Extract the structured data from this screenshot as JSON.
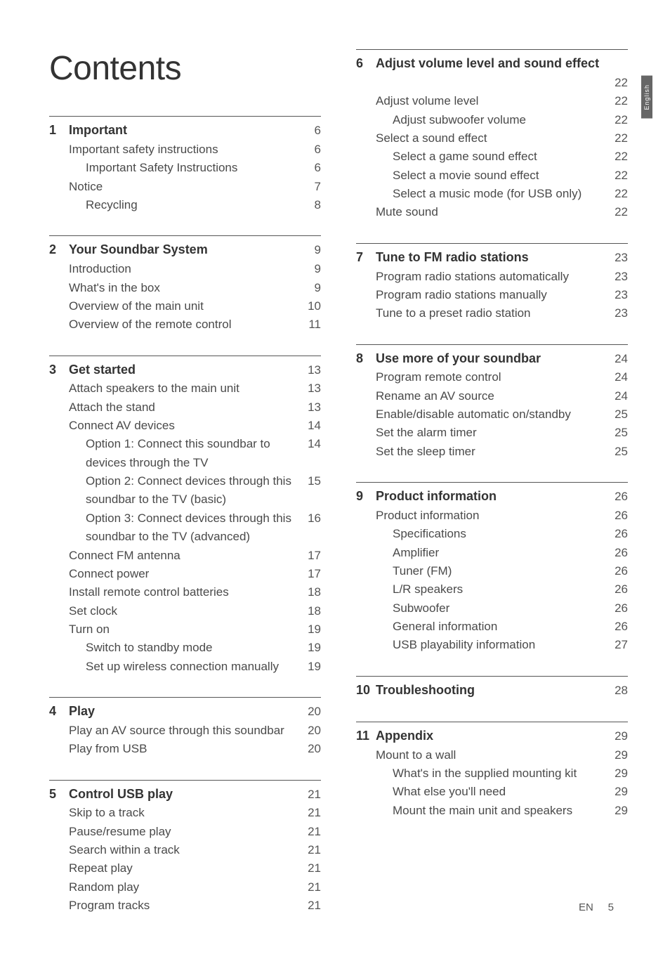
{
  "title": "Contents",
  "lang_tab": "English",
  "footer": {
    "lang": "EN",
    "page": "5"
  },
  "left": [
    {
      "num": "1",
      "head": {
        "label": "Important",
        "page": "6"
      },
      "rows": [
        {
          "label": "Important safety instructions",
          "page": "6"
        },
        {
          "label": "Important Safety Instructions",
          "page": "6",
          "sub": true
        },
        {
          "label": "Notice",
          "page": "7"
        },
        {
          "label": "Recycling",
          "page": "8",
          "sub": true
        }
      ]
    },
    {
      "num": "2",
      "head": {
        "label": "Your Soundbar System",
        "page": "9"
      },
      "rows": [
        {
          "label": "Introduction",
          "page": "9"
        },
        {
          "label": "What's in the box",
          "page": "9"
        },
        {
          "label": "Overview of the main unit",
          "page": "10"
        },
        {
          "label": "Overview of the remote control",
          "page": "11"
        }
      ]
    },
    {
      "num": "3",
      "head": {
        "label": "Get started",
        "page": "13"
      },
      "rows": [
        {
          "label": "Attach speakers to the main unit",
          "page": "13"
        },
        {
          "label": "Attach the stand",
          "page": "13"
        },
        {
          "label": "Connect AV devices",
          "page": "14"
        },
        {
          "label": "Option 1: Connect this soundbar to devices through the TV",
          "page": "14",
          "sub": true
        },
        {
          "label": "Option 2: Connect devices through this soundbar to the TV (basic)",
          "page": "15",
          "sub": true
        },
        {
          "label": "Option 3: Connect devices through this soundbar to the TV (advanced)",
          "page": "16",
          "sub": true
        },
        {
          "label": "Connect FM antenna",
          "page": "17"
        },
        {
          "label": "Connect power",
          "page": "17"
        },
        {
          "label": "Install remote control batteries",
          "page": "18"
        },
        {
          "label": "Set clock",
          "page": "18"
        },
        {
          "label": "Turn on",
          "page": "19"
        },
        {
          "label": "Switch to standby mode",
          "page": "19",
          "sub": true
        },
        {
          "label": "Set up wireless connection manually",
          "page": "19",
          "sub": true
        }
      ]
    },
    {
      "num": "4",
      "head": {
        "label": "Play",
        "page": "20"
      },
      "rows": [
        {
          "label": "Play an AV source through this soundbar",
          "page": "20"
        },
        {
          "label": "Play from USB",
          "page": "20"
        }
      ]
    },
    {
      "num": "5",
      "head": {
        "label": "Control USB play",
        "page": "21"
      },
      "rows": [
        {
          "label": "Skip to a track",
          "page": "21"
        },
        {
          "label": "Pause/resume play",
          "page": "21"
        },
        {
          "label": "Search within a track",
          "page": "21"
        },
        {
          "label": "Repeat play",
          "page": "21"
        },
        {
          "label": "Random play",
          "page": "21"
        },
        {
          "label": "Program tracks",
          "page": "21"
        }
      ]
    }
  ],
  "right": [
    {
      "num": "6",
      "head": {
        "label": "Adjust volume level and sound effect",
        "page": "22",
        "pageBelow": true
      },
      "rows": [
        {
          "label": "Adjust volume level",
          "page": "22"
        },
        {
          "label": "Adjust subwoofer volume",
          "page": "22",
          "sub": true
        },
        {
          "label": "Select a sound effect",
          "page": "22"
        },
        {
          "label": "Select a game sound effect",
          "page": "22",
          "sub": true
        },
        {
          "label": "Select a movie sound effect",
          "page": "22",
          "sub": true
        },
        {
          "label": "Select a music mode (for USB only)",
          "page": "22",
          "sub": true
        },
        {
          "label": "Mute sound",
          "page": "22"
        }
      ]
    },
    {
      "num": "7",
      "head": {
        "label": "Tune to FM radio stations",
        "page": "23"
      },
      "rows": [
        {
          "label": "Program radio stations automatically",
          "page": "23"
        },
        {
          "label": "Program radio stations manually",
          "page": "23"
        },
        {
          "label": "Tune to a preset radio station",
          "page": "23"
        }
      ]
    },
    {
      "num": "8",
      "head": {
        "label": "Use more of your soundbar",
        "page": "24"
      },
      "rows": [
        {
          "label": "Program remote control",
          "page": "24"
        },
        {
          "label": "Rename an AV source",
          "page": "24"
        },
        {
          "label": "Enable/disable automatic on/standby",
          "page": "25"
        },
        {
          "label": "Set the alarm timer",
          "page": "25"
        },
        {
          "label": "Set the sleep timer",
          "page": "25"
        }
      ]
    },
    {
      "num": "9",
      "head": {
        "label": "Product information",
        "page": "26"
      },
      "rows": [
        {
          "label": "Product information",
          "page": "26"
        },
        {
          "label": "Specifications",
          "page": "26",
          "sub": true
        },
        {
          "label": "Amplifier",
          "page": "26",
          "sub": true
        },
        {
          "label": "Tuner (FM)",
          "page": "26",
          "sub": true
        },
        {
          "label": "L/R speakers",
          "page": "26",
          "sub": true
        },
        {
          "label": "Subwoofer",
          "page": "26",
          "sub": true
        },
        {
          "label": "General information",
          "page": "26",
          "sub": true
        },
        {
          "label": "USB playability information",
          "page": "27",
          "sub": true
        }
      ]
    },
    {
      "num": "10",
      "head": {
        "label": "Troubleshooting",
        "page": "28"
      },
      "rows": []
    },
    {
      "num": "11",
      "head": {
        "label": "Appendix",
        "page": "29"
      },
      "rows": [
        {
          "label": "Mount to a wall",
          "page": "29"
        },
        {
          "label": "What's in the supplied mounting kit",
          "page": "29",
          "sub": true
        },
        {
          "label": "What else you'll need",
          "page": "29",
          "sub": true
        },
        {
          "label": "Mount the main unit and speakers",
          "page": "29",
          "sub": true
        }
      ]
    }
  ]
}
